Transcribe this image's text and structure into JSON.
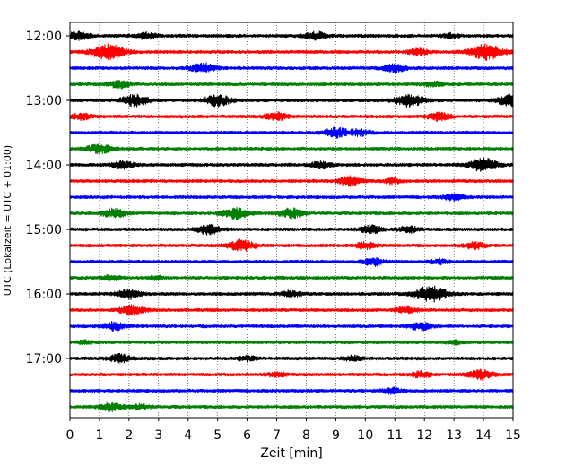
{
  "chart_data": {
    "type": "line",
    "chart_kind": "helicorder",
    "title": "",
    "xlabel": "Zeit  [min]",
    "ylabel": "UTC (Lokalzeit = UTC + 01:00)",
    "xlim": [
      0,
      15
    ],
    "x_ticks": [
      "0",
      "1",
      "2",
      "3",
      "4",
      "5",
      "6",
      "7",
      "8",
      "9",
      "10",
      "11",
      "12",
      "13",
      "14",
      "15"
    ],
    "y_tick_labels": [
      "12:00",
      "13:00",
      "14:00",
      "15:00",
      "16:00",
      "17:00"
    ],
    "x_grid": "dotted",
    "line_colors": [
      "#000000",
      "#ff0000",
      "#0000ff",
      "#008000"
    ],
    "trace_start_times": [
      "12:00",
      "12:15",
      "12:30",
      "12:45",
      "13:00",
      "13:15",
      "13:30",
      "13:45",
      "14:00",
      "14:15",
      "14:30",
      "14:45",
      "15:00",
      "15:15",
      "15:30",
      "15:45",
      "16:00",
      "16:15",
      "16:30",
      "16:45",
      "17:00",
      "17:15",
      "17:30",
      "17:45"
    ],
    "bursts": [
      [
        [
          0.3,
          0.5
        ],
        [
          2.6,
          0.4
        ],
        [
          8.3,
          0.5
        ],
        [
          12.9,
          0.3
        ]
      ],
      [
        [
          1.3,
          1.0
        ],
        [
          11.8,
          0.4
        ],
        [
          14.1,
          1.0
        ]
      ],
      [
        [
          4.5,
          0.6
        ],
        [
          11.0,
          0.5
        ]
      ],
      [
        [
          1.7,
          0.5
        ],
        [
          12.3,
          0.3
        ]
      ],
      [
        [
          2.2,
          0.7
        ],
        [
          5.0,
          0.7
        ],
        [
          11.5,
          0.8
        ],
        [
          14.9,
          0.7
        ]
      ],
      [
        [
          0.4,
          0.4
        ],
        [
          7.0,
          0.5
        ],
        [
          12.5,
          0.5
        ]
      ],
      [
        [
          9.0,
          0.6
        ],
        [
          9.8,
          0.4
        ]
      ],
      [
        [
          1.0,
          0.6
        ]
      ],
      [
        [
          1.8,
          0.5
        ],
        [
          8.5,
          0.4
        ],
        [
          14.0,
          0.8
        ]
      ],
      [
        [
          9.5,
          0.6
        ],
        [
          10.9,
          0.3
        ]
      ],
      [
        [
          13.0,
          0.4
        ]
      ],
      [
        [
          1.5,
          0.6
        ],
        [
          5.6,
          0.7
        ],
        [
          7.5,
          0.6
        ]
      ],
      [
        [
          4.7,
          0.6
        ],
        [
          10.2,
          0.5
        ],
        [
          11.5,
          0.4
        ]
      ],
      [
        [
          5.8,
          0.7
        ],
        [
          10.0,
          0.4
        ],
        [
          13.7,
          0.4
        ]
      ],
      [
        [
          10.3,
          0.5
        ],
        [
          12.5,
          0.3
        ]
      ],
      [
        [
          1.4,
          0.3
        ],
        [
          2.9,
          0.2
        ]
      ],
      [
        [
          2.0,
          0.6
        ],
        [
          7.5,
          0.4
        ],
        [
          12.2,
          1.0
        ]
      ],
      [
        [
          2.1,
          0.6
        ],
        [
          11.4,
          0.4
        ]
      ],
      [
        [
          1.5,
          0.5
        ],
        [
          11.9,
          0.5
        ]
      ],
      [
        [
          0.5,
          0.2
        ],
        [
          13.0,
          0.2
        ]
      ],
      [
        [
          1.7,
          0.5
        ],
        [
          6.0,
          0.3
        ],
        [
          9.6,
          0.3
        ]
      ],
      [
        [
          7.0,
          0.3
        ],
        [
          11.9,
          0.4
        ],
        [
          13.9,
          0.6
        ]
      ],
      [
        [
          10.9,
          0.4
        ]
      ],
      [
        [
          1.4,
          0.5
        ],
        [
          2.4,
          0.3
        ]
      ]
    ]
  }
}
